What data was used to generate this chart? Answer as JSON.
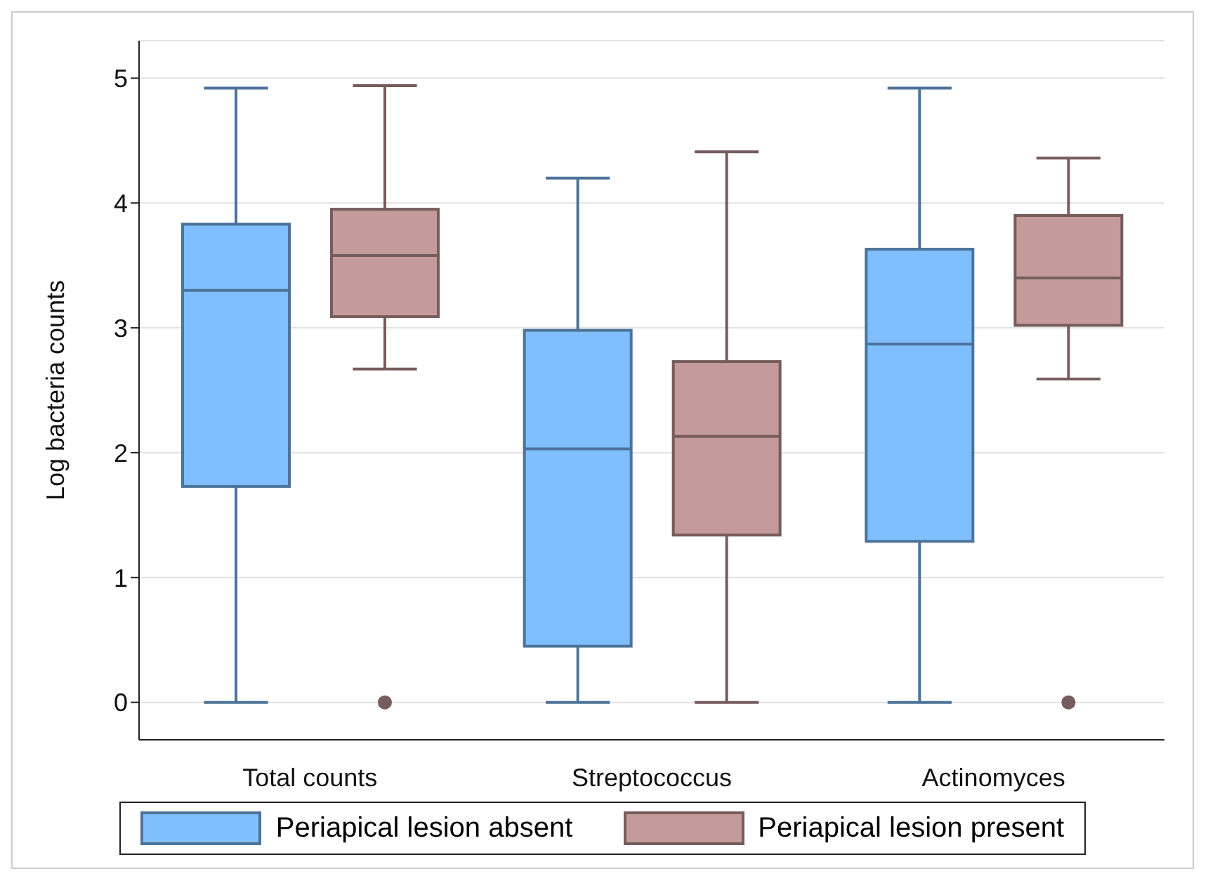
{
  "chart_data": {
    "type": "box",
    "ylabel": "Log bacteria counts",
    "categories": [
      "Total counts",
      "Streptococcus",
      "Actinomyces"
    ],
    "ylim": [
      -0.3,
      5.3
    ],
    "yticks": [
      0,
      1,
      2,
      3,
      4,
      5
    ],
    "grid": "y",
    "legend": "bottom",
    "series": [
      {
        "name": "Periapical lesion absent",
        "color": "#80bfff",
        "boxes": [
          {
            "low": 0,
            "q1": 1.73,
            "median": 3.3,
            "q3": 3.83,
            "high": 4.92
          },
          {
            "low": 0,
            "q1": 0.45,
            "median": 2.03,
            "q3": 2.98,
            "high": 4.2
          },
          {
            "low": 0,
            "q1": 1.29,
            "median": 2.87,
            "q3": 3.63,
            "high": 4.92
          }
        ]
      },
      {
        "name": "Periapical lesion present",
        "color": "#c49a9a",
        "boxes": [
          {
            "low": 2.67,
            "q1": 3.09,
            "median": 3.58,
            "q3": 3.95,
            "high": 4.94,
            "outliers": [
              0
            ]
          },
          {
            "low": 0,
            "q1": 1.34,
            "median": 2.13,
            "q3": 2.73,
            "high": 4.41
          },
          {
            "low": 2.59,
            "q1": 3.02,
            "median": 3.4,
            "q3": 3.9,
            "high": 4.36,
            "outliers": [
              0
            ]
          }
        ]
      }
    ]
  }
}
